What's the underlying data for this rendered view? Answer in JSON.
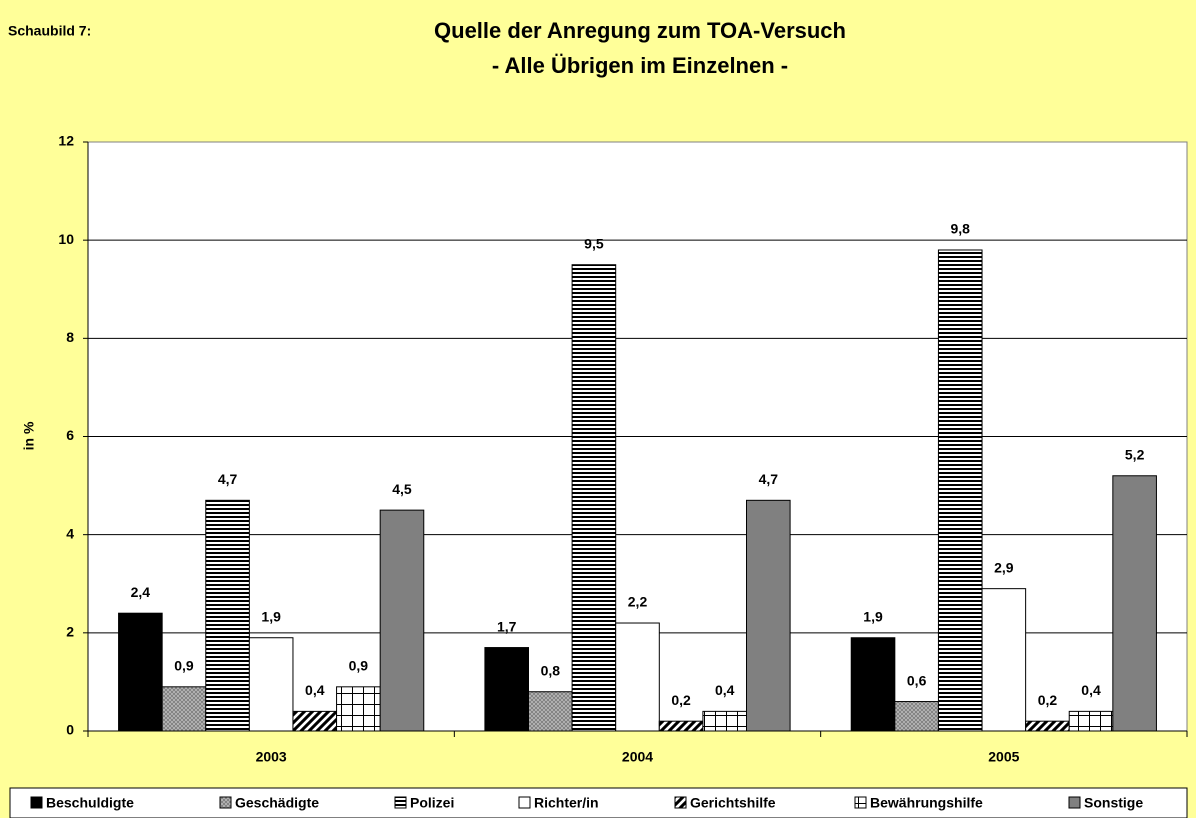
{
  "chart_data": {
    "type": "bar",
    "label": "Schaubild 7:",
    "title": "Quelle der Anregung zum TOA-Versuch",
    "subtitle": "- Alle Übrigen im Einzelnen -",
    "ylabel": "in %",
    "categories": [
      "2003",
      "2004",
      "2005"
    ],
    "ylim": [
      0,
      12
    ],
    "yticks": [
      0,
      2,
      4,
      6,
      8,
      10,
      12
    ],
    "grid": true,
    "legend": "bottom",
    "series": [
      {
        "name": "Beschuldigte",
        "color": "#000000",
        "pattern": "solid",
        "values": [
          2.4,
          1.7,
          1.9
        ],
        "value_labels": [
          "2,4",
          "1,7",
          "1,9"
        ]
      },
      {
        "name": "Geschädigte",
        "color": "#c0c0c0",
        "pattern": "crosshatch",
        "values": [
          0.9,
          0.8,
          0.6
        ],
        "value_labels": [
          "0,9",
          "0,8",
          "0,6"
        ]
      },
      {
        "name": "Polizei",
        "color": "#ffffff",
        "pattern": "horizontal",
        "values": [
          4.7,
          9.5,
          9.8
        ],
        "value_labels": [
          "4,7",
          "9,5",
          "9,8"
        ]
      },
      {
        "name": "Richter/in",
        "color": "#ffffff",
        "pattern": "solid",
        "values": [
          1.9,
          2.2,
          2.9
        ],
        "value_labels": [
          "1,9",
          "2,2",
          "2,9"
        ]
      },
      {
        "name": "Gerichtshilfe",
        "color": "#ffffff",
        "pattern": "diagonal",
        "values": [
          0.4,
          0.2,
          0.2
        ],
        "value_labels": [
          "0,4",
          "0,2",
          "0,2"
        ]
      },
      {
        "name": "Bewährungshilfe",
        "color": "#ffffff",
        "pattern": "grid",
        "values": [
          0.9,
          0.4,
          0.4
        ],
        "value_labels": [
          "0,9",
          "0,4",
          "0,4"
        ]
      },
      {
        "name": "Sonstige",
        "color": "#808080",
        "pattern": "solid",
        "values": [
          4.5,
          4.7,
          5.2
        ],
        "value_labels": [
          "4,5",
          "4,7",
          "5,2"
        ]
      }
    ]
  }
}
